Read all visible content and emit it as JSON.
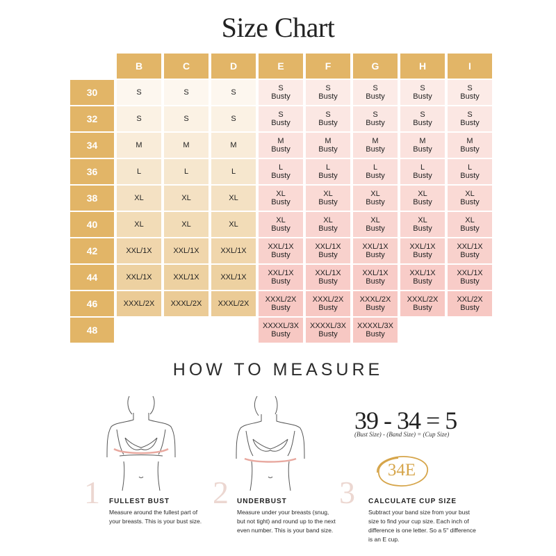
{
  "title": "Size Chart",
  "colors": {
    "header_gold": "#e2b567",
    "busty_pink_light": "#fcebe7",
    "busty_pink_dark": "#f7c8c3",
    "cream_light": "#fdf7ef",
    "cream_dark": "#ebcb96",
    "accent_gold": "#d6a54a",
    "step_number_pink": "#ecd7d1"
  },
  "size_chart": {
    "cups": [
      "B",
      "C",
      "D",
      "E",
      "F",
      "G",
      "H",
      "I"
    ],
    "bands": [
      "30",
      "32",
      "34",
      "36",
      "38",
      "40",
      "42",
      "44",
      "46",
      "48"
    ],
    "rows": [
      [
        [
          "S",
          ""
        ],
        [
          "S",
          ""
        ],
        [
          "S",
          ""
        ],
        [
          "S",
          "Busty"
        ],
        [
          "S",
          "Busty"
        ],
        [
          "S",
          "Busty"
        ],
        [
          "S",
          "Busty"
        ],
        [
          "S",
          "Busty"
        ]
      ],
      [
        [
          "S",
          ""
        ],
        [
          "S",
          ""
        ],
        [
          "S",
          ""
        ],
        [
          "S",
          "Busty"
        ],
        [
          "S",
          "Busty"
        ],
        [
          "S",
          "Busty"
        ],
        [
          "S",
          "Busty"
        ],
        [
          "S",
          "Busty"
        ]
      ],
      [
        [
          "M",
          ""
        ],
        [
          "M",
          ""
        ],
        [
          "M",
          ""
        ],
        [
          "M",
          "Busty"
        ],
        [
          "M",
          "Busty"
        ],
        [
          "M",
          "Busty"
        ],
        [
          "M",
          "Busty"
        ],
        [
          "M",
          "Busty"
        ]
      ],
      [
        [
          "L",
          ""
        ],
        [
          "L",
          ""
        ],
        [
          "L",
          ""
        ],
        [
          "L",
          "Busty"
        ],
        [
          "L",
          "Busty"
        ],
        [
          "L",
          "Busty"
        ],
        [
          "L",
          "Busty"
        ],
        [
          "L",
          "Busty"
        ]
      ],
      [
        [
          "XL",
          ""
        ],
        [
          "XL",
          ""
        ],
        [
          "XL",
          ""
        ],
        [
          "XL",
          "Busty"
        ],
        [
          "XL",
          "Busty"
        ],
        [
          "XL",
          "Busty"
        ],
        [
          "XL",
          "Busty"
        ],
        [
          "XL",
          "Busty"
        ]
      ],
      [
        [
          "XL",
          ""
        ],
        [
          "XL",
          ""
        ],
        [
          "XL",
          ""
        ],
        [
          "XL",
          "Busty"
        ],
        [
          "XL",
          "Busty"
        ],
        [
          "XL",
          "Busty"
        ],
        [
          "XL",
          "Busty"
        ],
        [
          "XL",
          "Busty"
        ]
      ],
      [
        [
          "XXL/1X",
          ""
        ],
        [
          "XXL/1X",
          ""
        ],
        [
          "XXL/1X",
          ""
        ],
        [
          "XXL/1X",
          "Busty"
        ],
        [
          "XXL/1X",
          "Busty"
        ],
        [
          "XXL/1X",
          "Busty"
        ],
        [
          "XXL/1X",
          "Busty"
        ],
        [
          "XXL/1X",
          "Busty"
        ]
      ],
      [
        [
          "XXL/1X",
          ""
        ],
        [
          "XXL/1X",
          ""
        ],
        [
          "XXL/1X",
          ""
        ],
        [
          "XXL/1X",
          "Busty"
        ],
        [
          "XXL/1X",
          "Busty"
        ],
        [
          "XXL/1X",
          "Busty"
        ],
        [
          "XXL/1X",
          "Busty"
        ],
        [
          "XXL/1X",
          "Busty"
        ]
      ],
      [
        [
          "XXXL/2X",
          ""
        ],
        [
          "XXXL/2X",
          ""
        ],
        [
          "XXXL/2X",
          ""
        ],
        [
          "XXXL/2X",
          "Busty"
        ],
        [
          "XXXL/2X",
          "Busty"
        ],
        [
          "XXXL/2X",
          "Busty"
        ],
        [
          "XXXL/2X",
          "Busty"
        ],
        [
          "XXL/2X",
          "Busty"
        ]
      ],
      [
        null,
        null,
        null,
        [
          "XXXXL/3X",
          "Busty"
        ],
        [
          "XXXXL/3X",
          "Busty"
        ],
        [
          "XXXXL/3X",
          "Busty"
        ],
        null,
        null
      ]
    ]
  },
  "how_to_measure": {
    "heading": "HOW TO MEASURE",
    "steps": [
      {
        "number": "1",
        "title": "FULLEST BUST",
        "description": "Measure around the fullest part of your breasts. This is your bust size."
      },
      {
        "number": "2",
        "title": "UNDERBUST",
        "description": "Measure under your breasts (snug, but not tight) and round up to the next even number. This is your band size."
      },
      {
        "number": "3",
        "title": "CALCULATE CUP SIZE",
        "description": "Subtract your band size from your bust size to find your cup size. Each inch of difference is one letter. So a 5\" difference is an E cup."
      }
    ],
    "equation": {
      "text": "39 - 34 = 5",
      "labels": "(Bust Size)  -  (Band Size)  =  (Cup Size)",
      "result_badge": "34E"
    }
  }
}
